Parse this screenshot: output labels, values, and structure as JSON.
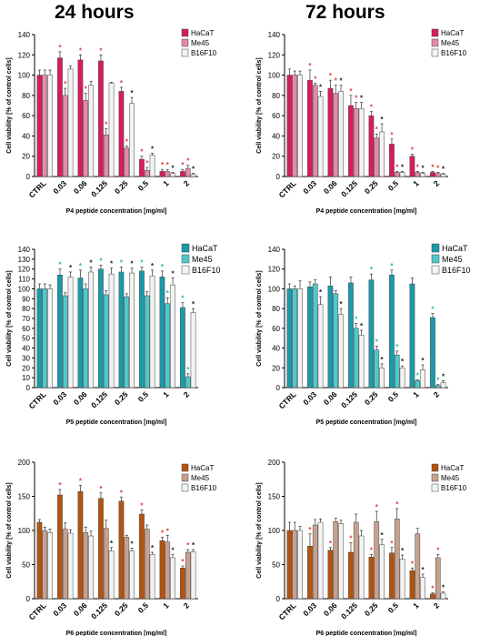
{
  "headers": {
    "left": "24 hours",
    "right": "72 hours"
  },
  "colors": {
    "p4": [
      "#d81b60",
      "#e58aa6",
      "#f3f3f3"
    ],
    "p5": [
      "#1b9aaa",
      "#4fc9cc",
      "#f3f3f3"
    ],
    "p6": [
      "#b5530f",
      "#c9a08e",
      "#f3f3f3"
    ],
    "star_p4": "#e53935",
    "star_p5": "#22b7a8",
    "star_p6": "#e53935",
    "star_black": "#222222"
  },
  "chart_data": [
    {
      "type": "bar",
      "palette": "p4",
      "title": "",
      "xlabel": "P4 peptide concentration [mg/ml]",
      "ylabel": "Cell viability [% of control cells]",
      "ylim": [
        0,
        140
      ],
      "yticks": [
        0,
        20,
        40,
        60,
        80,
        100,
        120,
        140
      ],
      "categories": [
        "CTRL",
        "0.03",
        "0.06",
        "0.125",
        "0.25",
        "0.5",
        "1",
        "2"
      ],
      "legend": {
        "entries": [
          "HaCaT",
          "Me45",
          "B16F10"
        ],
        "position": "top-right"
      },
      "series": [
        {
          "name": "HaCaT",
          "values": [
            100,
            117,
            115,
            114,
            84,
            17,
            5,
            5
          ],
          "errors": [
            5,
            6,
            5,
            6,
            4,
            3,
            2,
            2
          ],
          "stars": [
            0,
            1,
            1,
            1,
            1,
            1,
            1,
            1
          ]
        },
        {
          "name": "Me45",
          "values": [
            100,
            80,
            75,
            41,
            28,
            6,
            5,
            8
          ],
          "errors": [
            5,
            7,
            7,
            6,
            2,
            3,
            2,
            3
          ],
          "stars": [
            0,
            1,
            1,
            1,
            1,
            1,
            1,
            1
          ]
        },
        {
          "name": "B16F10",
          "values": [
            100,
            106,
            90,
            92,
            72,
            21,
            3,
            2
          ],
          "errors": [
            5,
            3,
            4,
            1,
            6,
            2,
            1,
            1
          ],
          "stars": [
            0,
            0,
            0,
            0,
            1,
            1,
            1,
            1
          ]
        }
      ]
    },
    {
      "type": "bar",
      "palette": "p4",
      "title": "",
      "xlabel": "P4 peptide concentration [mg/ml]",
      "ylabel": "Cell viability [% of control cells]",
      "ylim": [
        0,
        140
      ],
      "yticks": [
        0,
        20,
        40,
        60,
        80,
        100,
        120,
        140
      ],
      "categories": [
        "CTRL",
        "0.03",
        "0.06",
        "0.125",
        "0.25",
        "0.5",
        "1",
        "2"
      ],
      "legend": {
        "entries": [
          "HaCaT",
          "Me45",
          "B16F10"
        ],
        "position": "top-right"
      },
      "series": [
        {
          "name": "HaCaT",
          "values": [
            100,
            95,
            87,
            70,
            60,
            32,
            20,
            4
          ],
          "errors": [
            6,
            10,
            8,
            10,
            4,
            5,
            2,
            1
          ],
          "stars": [
            0,
            1,
            1,
            1,
            1,
            1,
            1,
            1
          ]
        },
        {
          "name": "Me45",
          "values": [
            100,
            90,
            82,
            67,
            38,
            4,
            4,
            3
          ],
          "errors": [
            4,
            2,
            8,
            6,
            4,
            1,
            1,
            1
          ],
          "stars": [
            0,
            1,
            1,
            1,
            1,
            1,
            1,
            1
          ]
        },
        {
          "name": "B16F10",
          "values": [
            100,
            79,
            84,
            67,
            44,
            4,
            3,
            2
          ],
          "errors": [
            4,
            5,
            6,
            6,
            8,
            1,
            1,
            1
          ],
          "stars": [
            0,
            1,
            1,
            1,
            1,
            1,
            1,
            1
          ]
        }
      ]
    },
    {
      "type": "bar",
      "palette": "p5",
      "title": "",
      "xlabel": "P5 peptide concentration [mg/ml]",
      "ylabel": "Cell viability [% of control cells]",
      "ylim": [
        0,
        140
      ],
      "yticks": [
        0,
        10,
        20,
        30,
        40,
        50,
        60,
        70,
        80,
        90,
        100,
        110,
        120,
        130,
        140
      ],
      "categories": [
        "CTRL",
        "0.03",
        "0.06",
        "0.125",
        "0.25",
        "0.5",
        "1",
        "2"
      ],
      "legend": {
        "entries": [
          "HaCaT",
          "Me45",
          "B16F10"
        ],
        "position": "top-right"
      },
      "series": [
        {
          "name": "HaCaT",
          "values": [
            100,
            114,
            111,
            120,
            117,
            118,
            112,
            81
          ],
          "errors": [
            5,
            6,
            8,
            4,
            5,
            4,
            6,
            5
          ],
          "stars": [
            0,
            1,
            1,
            1,
            1,
            1,
            1,
            1
          ]
        },
        {
          "name": "Me45",
          "values": [
            100,
            93,
            100,
            94,
            92,
            93,
            85,
            11
          ],
          "errors": [
            5,
            3,
            5,
            4,
            3,
            4,
            6,
            3
          ],
          "stars": [
            0,
            0,
            0,
            0,
            0,
            0,
            1,
            1
          ]
        },
        {
          "name": "B16F10",
          "values": [
            100,
            112,
            117,
            115,
            116,
            113,
            104,
            76
          ],
          "errors": [
            4,
            5,
            5,
            6,
            5,
            6,
            7,
            4
          ],
          "stars": [
            0,
            1,
            1,
            1,
            1,
            1,
            1,
            1
          ]
        }
      ]
    },
    {
      "type": "bar",
      "palette": "p5",
      "title": "",
      "xlabel": "P5 peptide concentration [mg/ml]",
      "ylabel": "Cell viability [% of control cells]",
      "ylim": [
        0,
        140
      ],
      "yticks": [
        0,
        20,
        40,
        60,
        80,
        100,
        120,
        140
      ],
      "categories": [
        "CTRL",
        "0.03",
        "0.06",
        "0.125",
        "0.25",
        "0.5",
        "1",
        "2"
      ],
      "legend": {
        "entries": [
          "HaCaT",
          "Me45",
          "B16F10"
        ],
        "position": "top-right"
      },
      "series": [
        {
          "name": "HaCaT",
          "values": [
            100,
            102,
            103,
            106,
            109,
            114,
            105,
            71
          ],
          "errors": [
            5,
            5,
            9,
            6,
            6,
            5,
            6,
            4
          ],
          "stars": [
            0,
            0,
            0,
            0,
            1,
            1,
            0,
            1
          ]
        },
        {
          "name": "Me45",
          "values": [
            100,
            105,
            95,
            60,
            38,
            33,
            7,
            2
          ],
          "errors": [
            3,
            4,
            3,
            5,
            4,
            4,
            1,
            1
          ],
          "stars": [
            0,
            0,
            0,
            1,
            1,
            1,
            1,
            1
          ]
        },
        {
          "name": "B16F10",
          "values": [
            100,
            84,
            74,
            53,
            20,
            20,
            18,
            5
          ],
          "errors": [
            8,
            8,
            6,
            5,
            4,
            2,
            5,
            2
          ],
          "stars": [
            0,
            1,
            1,
            1,
            1,
            1,
            1,
            1
          ]
        }
      ]
    },
    {
      "type": "bar",
      "palette": "p6",
      "title": "",
      "xlabel": "P6 peptide concentration [mg/ml]",
      "ylabel": "Cell viability [% of control cells]",
      "ylim": [
        0,
        200
      ],
      "yticks": [
        0,
        50,
        100,
        150,
        200
      ],
      "categories": [
        "CTRL",
        "0.03",
        "0.06",
        "0.125",
        "0.25",
        "0.5",
        "1",
        "2"
      ],
      "legend": {
        "entries": [
          "HaCaT",
          "Me45",
          "B16F10"
        ],
        "position": "top-right"
      },
      "series": [
        {
          "name": "HaCaT",
          "values": [
            112,
            152,
            157,
            147,
            143,
            124,
            85,
            45
          ],
          "errors": [
            4,
            8,
            9,
            8,
            6,
            6,
            5,
            3
          ],
          "stars": [
            0,
            1,
            1,
            1,
            1,
            1,
            1,
            1
          ]
        },
        {
          "name": "Me45",
          "values": [
            100,
            102,
            97,
            103,
            90,
            102,
            83,
            68
          ],
          "errors": [
            5,
            9,
            8,
            12,
            3,
            6,
            10,
            4
          ],
          "stars": [
            0,
            0,
            0,
            0,
            0,
            0,
            1,
            1
          ]
        },
        {
          "name": "B16F10",
          "values": [
            97,
            96,
            92,
            70,
            70,
            65,
            60,
            69
          ],
          "errors": [
            5,
            5,
            7,
            5,
            4,
            3,
            5,
            3
          ],
          "stars": [
            0,
            0,
            0,
            1,
            1,
            1,
            1,
            1
          ]
        }
      ]
    },
    {
      "type": "bar",
      "palette": "p6",
      "title": "",
      "xlabel": "P6 peptide concentration [mg/ml]",
      "ylabel": "Cell viability [% of control cells]",
      "ylim": [
        0,
        200
      ],
      "yticks": [
        0,
        50,
        100,
        150,
        200
      ],
      "categories": [
        "CTRL",
        "0.03",
        "0.06",
        "0.125",
        "0.25",
        "0.5",
        "1",
        "2"
      ],
      "legend": {
        "entries": [
          "HaCaT",
          "Me45",
          "B16F10"
        ],
        "position": "top-right"
      },
      "series": [
        {
          "name": "HaCaT",
          "values": [
            100,
            77,
            71,
            68,
            61,
            67,
            41,
            7
          ],
          "errors": [
            12,
            18,
            4,
            14,
            4,
            8,
            4,
            2
          ],
          "stars": [
            0,
            1,
            1,
            1,
            1,
            1,
            1,
            1
          ]
        },
        {
          "name": "Me45",
          "values": [
            100,
            108,
            113,
            112,
            113,
            117,
            95,
            60
          ],
          "errors": [
            12,
            8,
            5,
            12,
            15,
            15,
            8,
            5
          ],
          "stars": [
            0,
            0,
            0,
            0,
            1,
            1,
            0,
            1
          ]
        },
        {
          "name": "B16F10",
          "values": [
            100,
            112,
            110,
            92,
            79,
            58,
            31,
            8
          ],
          "errors": [
            6,
            5,
            5,
            8,
            8,
            6,
            5,
            2
          ],
          "stars": [
            0,
            0,
            0,
            0,
            1,
            1,
            1,
            1
          ]
        }
      ]
    }
  ]
}
